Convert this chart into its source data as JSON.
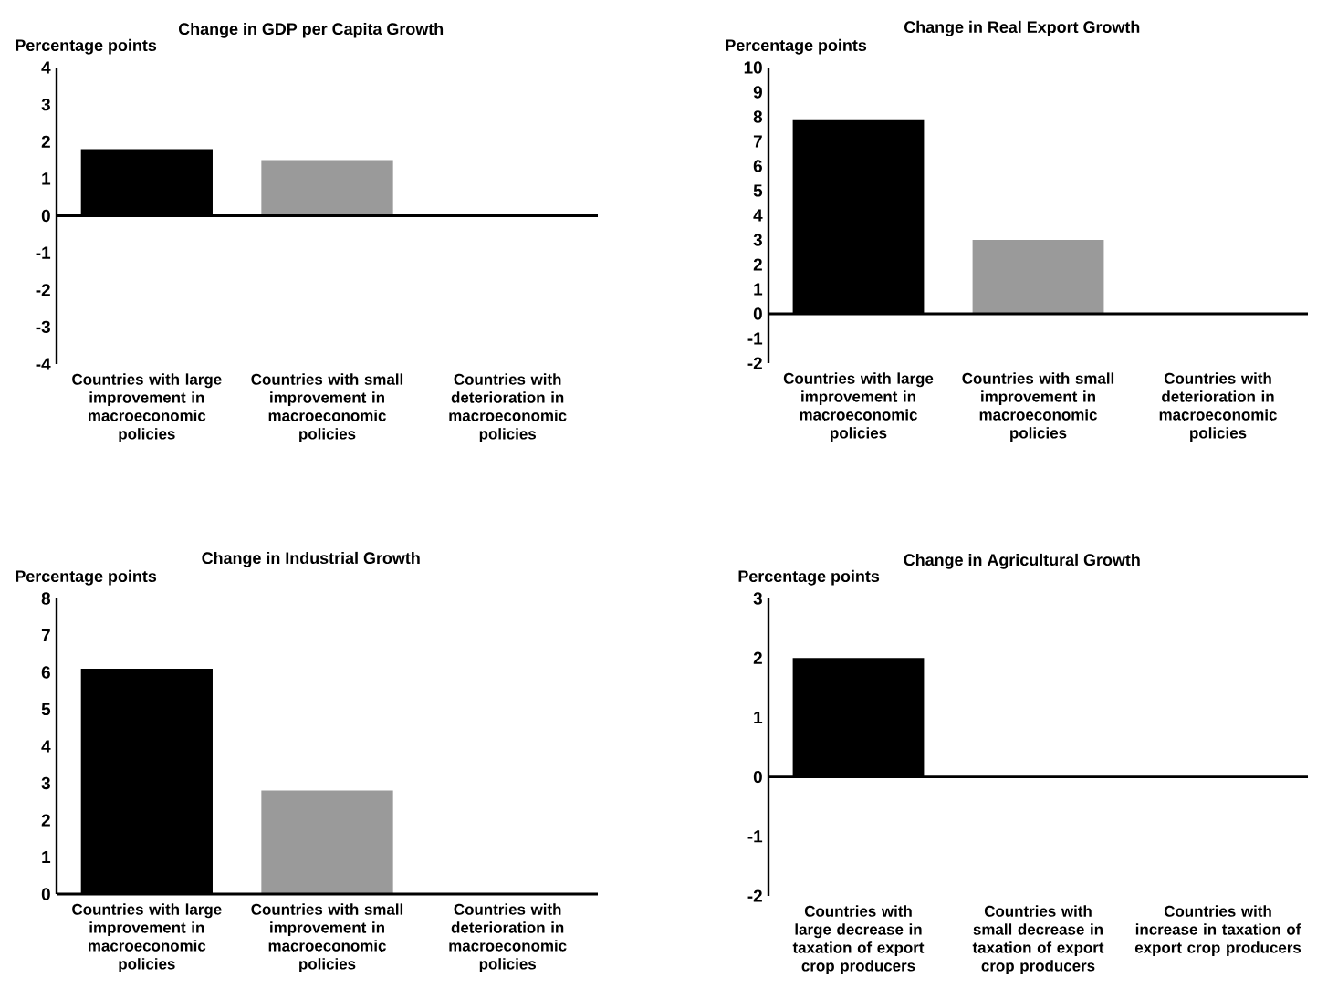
{
  "chart_data": [
    {
      "type": "bar",
      "title": "Change in GDP per Capita Growth",
      "ylabel": "Percentage points",
      "categories": [
        "Countries with large improvement in macroeconomic policies",
        "Countries with small improvement in macroeconomic policies",
        "Countries with deterioration in macroeconomic policies"
      ],
      "values": [
        1.8,
        1.5,
        0
      ],
      "colors": [
        "#000000",
        "#9a9a9a",
        "#9a9a9a"
      ],
      "ylim": [
        -4,
        4
      ],
      "yticks": [
        -4,
        -3,
        -2,
        -1,
        0,
        1,
        2,
        3,
        4
      ]
    },
    {
      "type": "bar",
      "title": "Change in Real Export Growth",
      "ylabel": "Percentage points",
      "categories": [
        "Countries with large improvement in macroeconomic policies",
        "Countries with small improvement in macroeconomic policies",
        "Countries with deterioration in macroeconomic policies"
      ],
      "values": [
        7.9,
        3.0,
        0
      ],
      "colors": [
        "#000000",
        "#9a9a9a",
        "#9a9a9a"
      ],
      "ylim": [
        -2,
        10
      ],
      "yticks": [
        -2,
        -1,
        0,
        1,
        2,
        3,
        4,
        5,
        6,
        7,
        8,
        9,
        10
      ]
    },
    {
      "type": "bar",
      "title": "Change in Industrial Growth",
      "ylabel": "Percentage points",
      "categories": [
        "Countries with large improvement in macroeconomic policies",
        "Countries with small improvement in macroeconomic policies",
        "Countries with deterioration in macroeconomic policies"
      ],
      "values": [
        6.1,
        2.8,
        0
      ],
      "colors": [
        "#000000",
        "#9a9a9a",
        "#9a9a9a"
      ],
      "ylim": [
        0,
        8
      ],
      "yticks": [
        0,
        1,
        2,
        3,
        4,
        5,
        6,
        7,
        8
      ]
    },
    {
      "type": "bar",
      "title": "Change in Agricultural Growth",
      "ylabel": "Percentage points",
      "categories": [
        "Countries with large decrease in taxation of export crop producers",
        "Countries with small decrease in taxation of export crop producers",
        "Countries with increase in taxation of export crop producers"
      ],
      "values": [
        2.0,
        0,
        0
      ],
      "colors": [
        "#000000",
        "#9a9a9a",
        "#9a9a9a"
      ],
      "ylim": [
        -2,
        3
      ],
      "yticks": [
        -2,
        -1,
        0,
        1,
        2,
        3
      ]
    }
  ]
}
